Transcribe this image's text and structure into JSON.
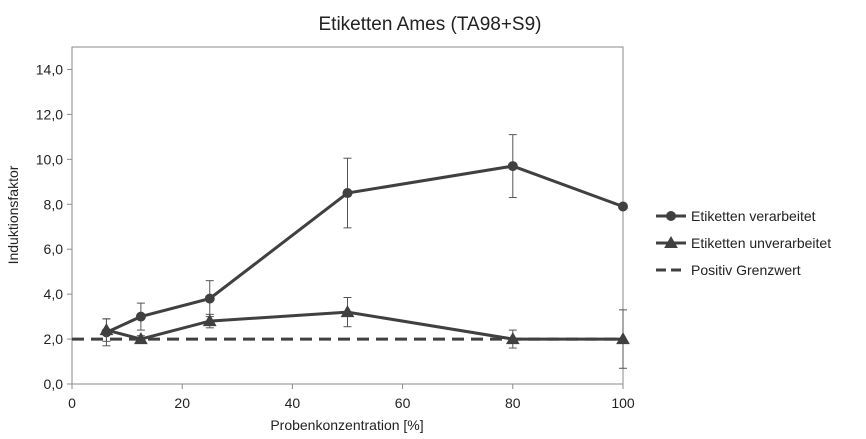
{
  "chart_data": {
    "type": "line",
    "title": "Etiketten Ames (TA98+S9)",
    "xlabel": "Probenkonzentration [%]",
    "ylabel": "Induktionsfaktor",
    "xlim": [
      0,
      100
    ],
    "ylim": [
      0,
      15
    ],
    "x_ticks": [
      0,
      20,
      40,
      60,
      80,
      100
    ],
    "x_tick_labels": [
      "0",
      "20",
      "40",
      "60",
      "80",
      "100"
    ],
    "y_ticks": [
      0,
      2,
      4,
      6,
      8,
      10,
      12,
      14
    ],
    "y_tick_labels": [
      "0,0",
      "2,0",
      "4,0",
      "6,0",
      "8,0",
      "10,0",
      "12,0",
      "14,0"
    ],
    "grid": false,
    "legend_position": "right",
    "series": [
      {
        "name": "Etiketten verarbeitet",
        "marker": "circle",
        "color": "#404040",
        "x": [
          6.25,
          12.5,
          25,
          50,
          80,
          100
        ],
        "y": [
          2.3,
          3.0,
          3.8,
          8.5,
          9.7,
          7.9
        ],
        "err": [
          0.6,
          0.6,
          0.8,
          1.55,
          1.4,
          0.0
        ]
      },
      {
        "name": "Etiketten unverarbeitet",
        "marker": "triangle",
        "color": "#404040",
        "x": [
          6.25,
          12.5,
          25,
          50,
          80,
          100
        ],
        "y": [
          2.4,
          2.0,
          2.8,
          3.2,
          2.0,
          2.0
        ],
        "err": [
          0.5,
          0.15,
          0.3,
          0.65,
          0.4,
          1.3
        ]
      },
      {
        "name": "Positiv Grenzwert",
        "style": "dashed",
        "color": "#404040",
        "x": [
          0,
          100
        ],
        "y": [
          2.0,
          2.0
        ]
      }
    ]
  }
}
